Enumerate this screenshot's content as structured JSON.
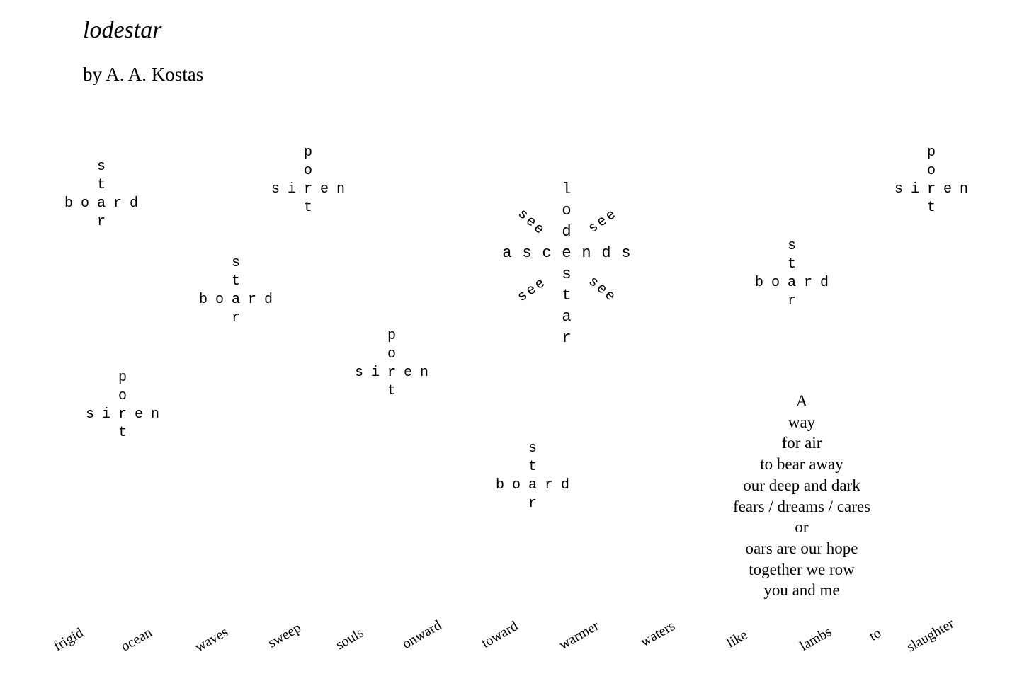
{
  "header": {
    "title": "lodestar",
    "author": "by A. A. Kostas"
  },
  "crosses": [
    {
      "down": "star",
      "across": "board"
    },
    {
      "down": "port",
      "across": "siren"
    },
    {
      "down": "star",
      "across": "board"
    },
    {
      "down": "port",
      "across": "siren"
    },
    {
      "down": "port",
      "across": "siren"
    },
    {
      "down": "star",
      "across": "board"
    },
    {
      "down": "star",
      "across": "board"
    },
    {
      "down": "port",
      "across": "siren"
    }
  ],
  "lodestar": {
    "down": "lodestar",
    "across": "ascends",
    "see": [
      "see",
      "see",
      "see",
      "see"
    ]
  },
  "stanza": [
    "A",
    "way",
    "for air",
    "to bear away",
    "our deep and dark",
    "fears / dreams / cares",
    "or",
    "oars are our hope",
    "together we row",
    "you and me"
  ],
  "waves": [
    "frigid",
    "ocean",
    "waves",
    "sweep",
    "souls",
    "onward",
    "toward",
    "warmer",
    "waters",
    "like",
    "lambs",
    "to",
    "slaughter"
  ]
}
